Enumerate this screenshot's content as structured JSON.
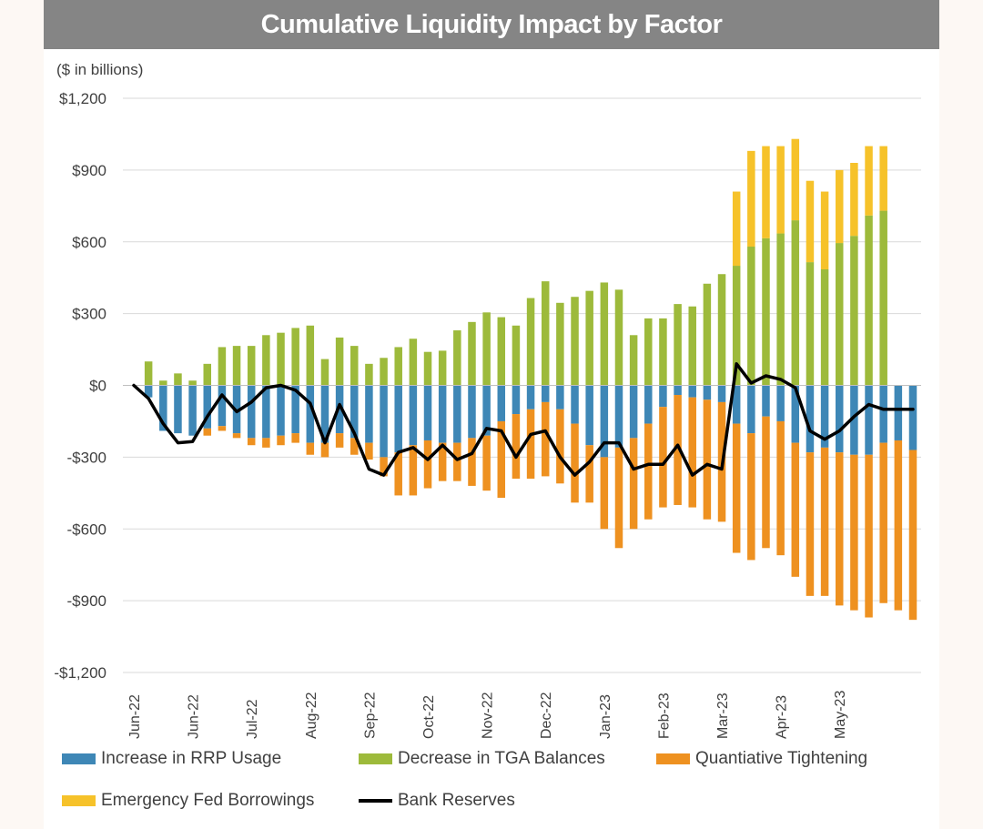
{
  "chart_data": {
    "type": "bar",
    "title": "Cumulative Liquidity Impact by Factor",
    "subtitle": "($ in billions)",
    "ylim": [
      -1200,
      1200
    ],
    "yticks": [
      1200,
      900,
      600,
      300,
      0,
      -300,
      -600,
      -900,
      -1200
    ],
    "ytick_labels": [
      "$1,200",
      "$900",
      "$600",
      "$300",
      "$0",
      "-$300",
      "-$600",
      "-$900",
      "-$1,200"
    ],
    "x_tick_labels": [
      {
        "label": "Jun-22",
        "index": 0
      },
      {
        "label": "Jun-22",
        "index": 4
      },
      {
        "label": "Jul-22",
        "index": 8
      },
      {
        "label": "Aug-22",
        "index": 12
      },
      {
        "label": "Sep-22",
        "index": 16
      },
      {
        "label": "Oct-22",
        "index": 20
      },
      {
        "label": "Nov-22",
        "index": 24
      },
      {
        "label": "Dec-22",
        "index": 28
      },
      {
        "label": "Jan-23",
        "index": 32
      },
      {
        "label": "Feb-23",
        "index": 36
      },
      {
        "label": "Mar-23",
        "index": 40
      },
      {
        "label": "Apr-23",
        "index": 44
      },
      {
        "label": "May-23",
        "index": 48
      }
    ],
    "series": [
      {
        "name": "Increase in RRP Usage",
        "color": "#3e87b6",
        "kind": "stack",
        "values": [
          0,
          -50,
          -190,
          -200,
          -210,
          -180,
          -170,
          -200,
          -220,
          -220,
          -210,
          -200,
          -240,
          -240,
          -200,
          -220,
          -240,
          -300,
          -280,
          -250,
          -230,
          -240,
          -240,
          -220,
          -210,
          -150,
          -120,
          -100,
          -70,
          -100,
          -160,
          -250,
          -300,
          -260,
          -220,
          -160,
          -90,
          -40,
          -50,
          -60,
          -70,
          -160,
          -200,
          -130,
          -150,
          -240,
          -280,
          -260,
          -280,
          -290,
          -290,
          -240,
          -230,
          -270
        ]
      },
      {
        "name": "Quantiative Tightening",
        "color": "#ee9120",
        "kind": "stack",
        "values": [
          0,
          0,
          0,
          0,
          0,
          -30,
          -20,
          -20,
          -30,
          -40,
          -40,
          -40,
          -50,
          -60,
          -60,
          -70,
          -70,
          -80,
          -180,
          -210,
          -200,
          -160,
          -160,
          -200,
          -230,
          -320,
          -270,
          -290,
          -310,
          -310,
          -330,
          -240,
          -300,
          -420,
          -380,
          -400,
          -420,
          -460,
          -460,
          -500,
          -500,
          -540,
          -530,
          -550,
          -560,
          -560,
          -600,
          -620,
          -640,
          -650,
          -680,
          -670,
          -710,
          -710
        ]
      },
      {
        "name": "Decrease in TGA Balances",
        "color": "#9dba3b",
        "kind": "stack",
        "values": [
          0,
          100,
          20,
          50,
          20,
          90,
          160,
          165,
          165,
          210,
          220,
          240,
          250,
          110,
          200,
          165,
          90,
          115,
          160,
          195,
          140,
          145,
          230,
          265,
          305,
          285,
          250,
          365,
          435,
          345,
          370,
          395,
          430,
          400,
          210,
          280,
          280,
          340,
          330,
          425,
          465,
          500,
          580,
          615,
          635,
          690,
          515,
          485,
          595,
          625,
          710,
          730,
          0,
          0
        ]
      },
      {
        "name": "Emergency Fed Borrowings",
        "color": "#f6c22a",
        "kind": "stack",
        "values": [
          0,
          0,
          0,
          0,
          0,
          0,
          0,
          0,
          0,
          0,
          0,
          0,
          0,
          0,
          0,
          0,
          0,
          0,
          0,
          0,
          0,
          0,
          0,
          0,
          0,
          0,
          0,
          0,
          0,
          0,
          0,
          0,
          0,
          0,
          0,
          0,
          0,
          0,
          0,
          0,
          0,
          310,
          400,
          385,
          365,
          340,
          340,
          325,
          305,
          305,
          290,
          270,
          0,
          0
        ]
      },
      {
        "name": "Bank Reserves",
        "color": "#000000",
        "kind": "line",
        "values": [
          0,
          -55,
          -160,
          -240,
          -235,
          -130,
          -40,
          -110,
          -70,
          -10,
          0,
          -20,
          -75,
          -240,
          -80,
          -200,
          -350,
          -375,
          -280,
          -260,
          -310,
          -250,
          -310,
          -285,
          -180,
          -190,
          -300,
          -205,
          -190,
          -300,
          -375,
          -320,
          -240,
          -240,
          -350,
          -330,
          -330,
          -250,
          -375,
          -330,
          -350,
          90,
          10,
          40,
          25,
          -10,
          -190,
          -225,
          -190,
          -130,
          -80,
          -100,
          -100,
          -100
        ]
      }
    ]
  }
}
